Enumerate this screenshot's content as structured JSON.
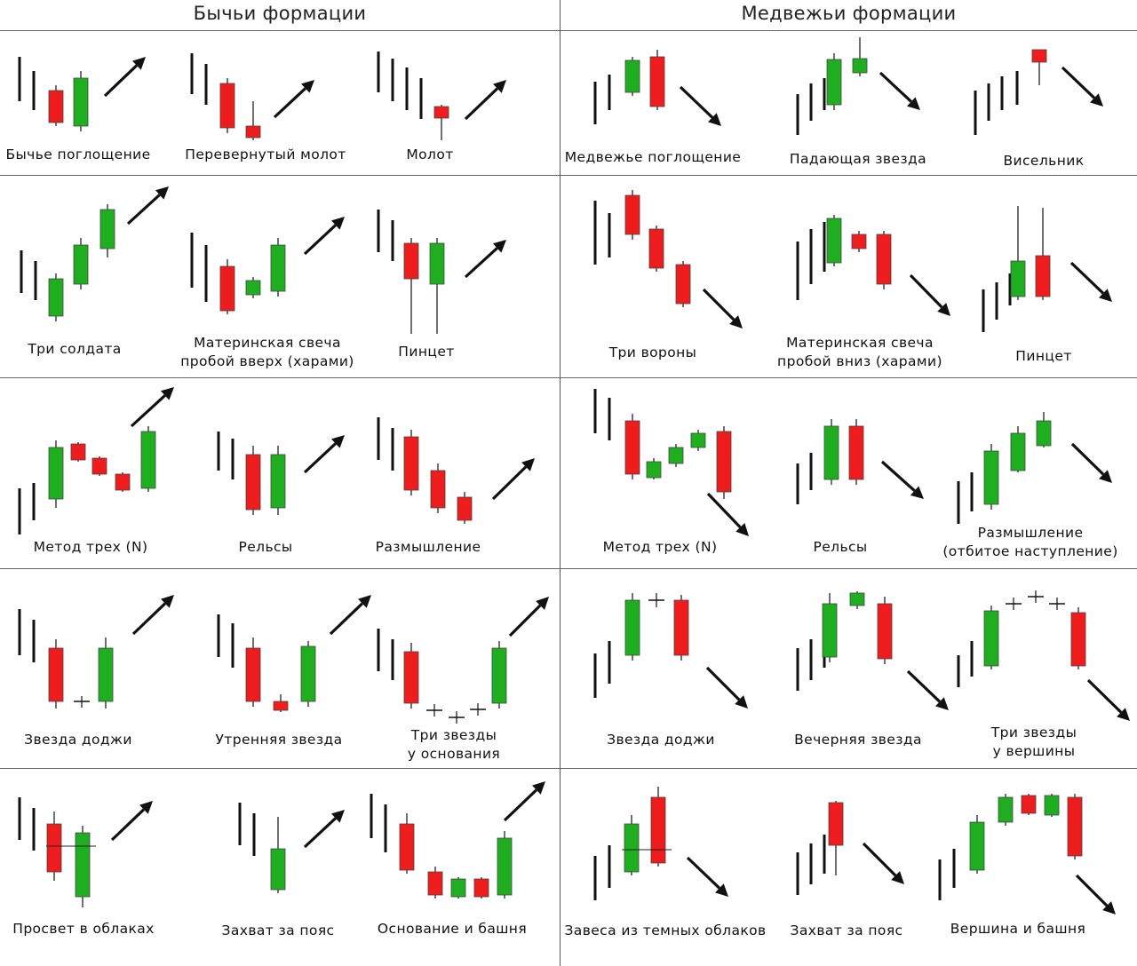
{
  "headers": {
    "bullish": "Бычьи формации",
    "bearish": "Медвежьи формации"
  },
  "colors": {
    "bull": "#1fae1f",
    "bear": "#ee1c1c",
    "line": "#111111",
    "grid": "#666666"
  },
  "patterns": [
    {
      "id": "bull-engulfing",
      "label": "Бычье поглощение",
      "trend": "up"
    },
    {
      "id": "inverted-hammer",
      "label": "Перевернутый молот",
      "trend": "up"
    },
    {
      "id": "hammer",
      "label": "Молот",
      "trend": "up"
    },
    {
      "id": "bear-engulfing",
      "label": "Медвежье поглощение",
      "trend": "down"
    },
    {
      "id": "shooting-star",
      "label": "Падающая звезда",
      "trend": "down"
    },
    {
      "id": "hanging-man",
      "label": "Висельник",
      "trend": "down"
    },
    {
      "id": "three-soldiers",
      "label": "Три солдата",
      "trend": "up"
    },
    {
      "id": "bull-harami",
      "label": "Материнская свеча",
      "label2": "пробой вверх (харами)",
      "trend": "up"
    },
    {
      "id": "tweezer-bottom",
      "label": "Пинцет",
      "trend": "up"
    },
    {
      "id": "three-crows",
      "label": "Три вороны",
      "trend": "down"
    },
    {
      "id": "bear-harami",
      "label": "Материнская свеча",
      "label2": "пробой вниз (харами)",
      "trend": "down"
    },
    {
      "id": "tweezer-top",
      "label": "Пинцет",
      "trend": "down"
    },
    {
      "id": "bull-three-method",
      "label": "Метод трех (N)",
      "trend": "up"
    },
    {
      "id": "bull-rails",
      "label": "Рельсы",
      "trend": "up"
    },
    {
      "id": "bull-thinking",
      "label": "Размышление",
      "trend": "up"
    },
    {
      "id": "bear-three-method",
      "label": "Метод трех (N)",
      "trend": "down"
    },
    {
      "id": "bear-rails",
      "label": "Рельсы",
      "trend": "down"
    },
    {
      "id": "bear-thinking",
      "label": "Размышление",
      "label2": "(отбитое наступление)",
      "trend": "down"
    },
    {
      "id": "bull-doji-star",
      "label": "Звезда доджи",
      "trend": "up"
    },
    {
      "id": "morning-star",
      "label": "Утренняя звезда",
      "trend": "up"
    },
    {
      "id": "three-stars-bottom",
      "label": "Три звезды",
      "label2": "у основания",
      "trend": "up"
    },
    {
      "id": "bear-doji-star",
      "label": "Звезда доджи",
      "trend": "down"
    },
    {
      "id": "evening-star",
      "label": "Вечерняя звезда",
      "trend": "down"
    },
    {
      "id": "three-stars-top",
      "label": "Три звезды",
      "label2": "у вершины",
      "trend": "down"
    },
    {
      "id": "piercing",
      "label": "Просвет в облаках",
      "trend": "up"
    },
    {
      "id": "bull-belt-hold",
      "label": "Захват за пояс",
      "trend": "up"
    },
    {
      "id": "tower-bottom",
      "label": "Основание и башня",
      "trend": "up"
    },
    {
      "id": "dark-cloud",
      "label": "Завеса из темных облаков",
      "trend": "down"
    },
    {
      "id": "bear-belt-hold",
      "label": "Захват за пояс",
      "trend": "down"
    },
    {
      "id": "tower-top",
      "label": "Вершина и башня",
      "trend": "down"
    }
  ]
}
